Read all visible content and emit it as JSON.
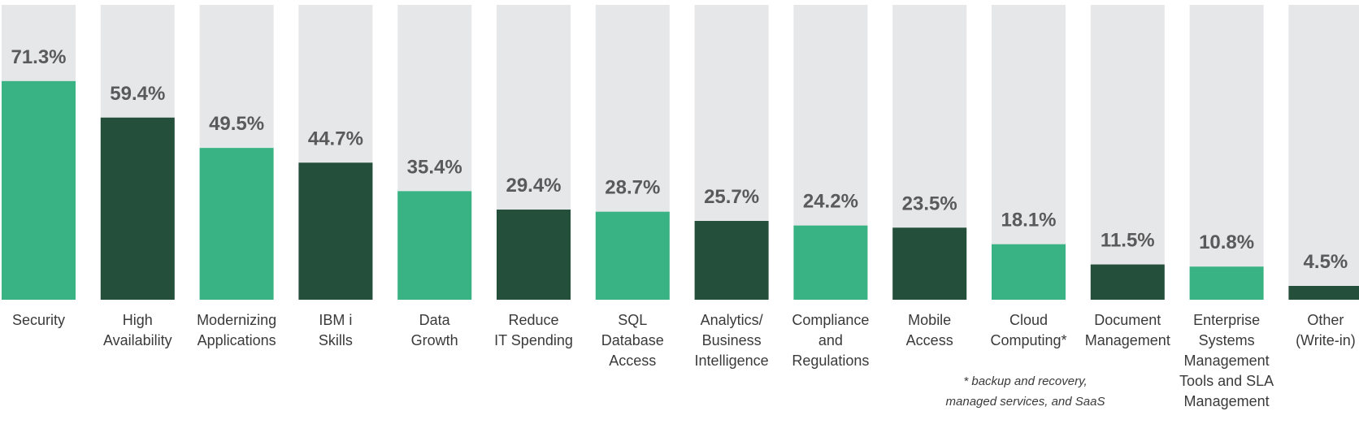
{
  "chart_data": {
    "type": "bar",
    "title": "",
    "xlabel": "",
    "ylabel": "",
    "ylim": [
      0,
      100
    ],
    "grid": false,
    "legend": "none",
    "categories": [
      [
        "Security"
      ],
      [
        "High",
        "Availability"
      ],
      [
        "Modernizing",
        "Applications"
      ],
      [
        "IBM i",
        "Skills"
      ],
      [
        "Data",
        "Growth"
      ],
      [
        "Reduce",
        "IT Spending"
      ],
      [
        "SQL",
        "Database",
        "Access"
      ],
      [
        "Analytics/",
        "Business",
        "Intelligence"
      ],
      [
        "Compliance",
        "and",
        "Regulations"
      ],
      [
        "Mobile",
        "Access"
      ],
      [
        "Cloud",
        "Computing*"
      ],
      [
        "Document",
        "Management"
      ],
      [
        "Enterprise",
        "Systems",
        "Management",
        "Tools and SLA",
        "Management"
      ],
      [
        "Other",
        "(Write-in)"
      ]
    ],
    "values": [
      71.3,
      59.4,
      49.5,
      44.7,
      35.4,
      29.4,
      28.7,
      25.7,
      24.2,
      23.5,
      18.1,
      11.5,
      10.8,
      4.5
    ],
    "value_labels": [
      "71.3%",
      "59.4%",
      "49.5%",
      "44.7%",
      "35.4%",
      "29.4%",
      "28.7%",
      "25.7%",
      "24.2%",
      "23.5%",
      "18.1%",
      "11.5%",
      "10.8%",
      "4.5%"
    ],
    "annotations": [
      "* backup and recovery,",
      "managed services, and SaaS"
    ]
  },
  "colors": {
    "track": "#e6e7e9",
    "bar_light": "#39b383",
    "bar_dark": "#234f3b",
    "value_text": "#5a5a5a",
    "label_text": "#3a3a3a"
  }
}
